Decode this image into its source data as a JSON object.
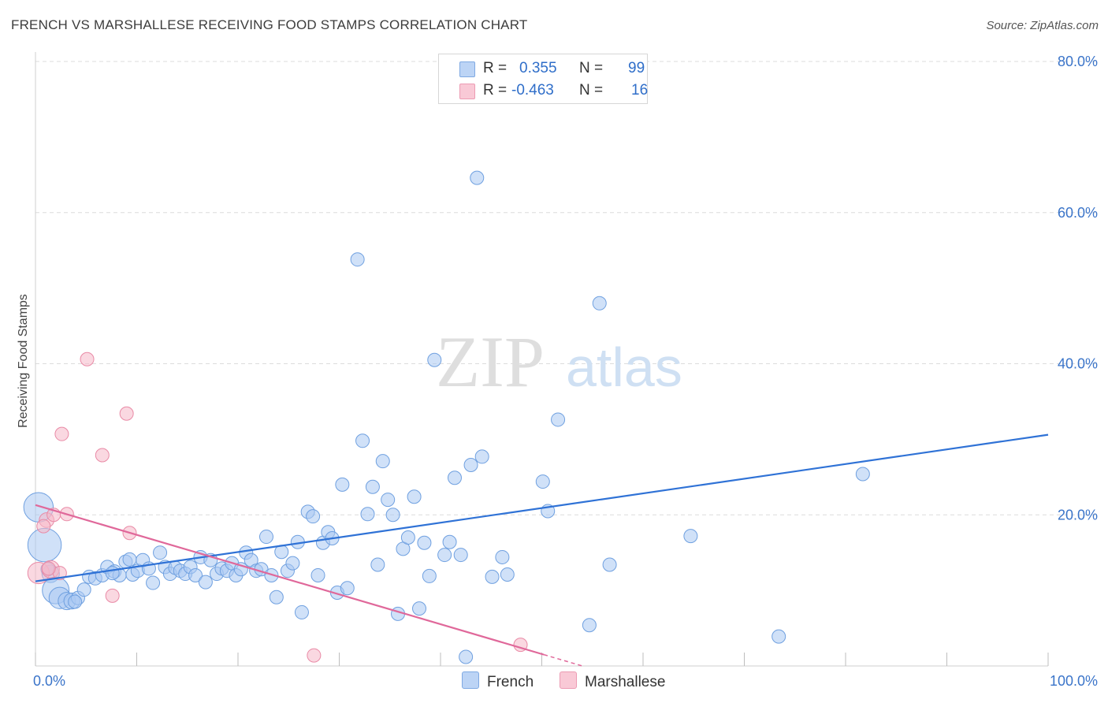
{
  "header": {
    "title": "FRENCH VS MARSHALLESE RECEIVING FOOD STAMPS CORRELATION CHART",
    "source": "Source: ZipAtlas.com"
  },
  "legend": {
    "rows": [
      {
        "r_label": "R =",
        "r_value": "0.355",
        "n_label": "N =",
        "n_value": "99",
        "color": "#a9c8f2"
      },
      {
        "r_label": "R =",
        "r_value": "-0.463",
        "n_label": "N =",
        "n_value": "16",
        "color": "#f6b8c9"
      }
    ]
  },
  "watermark": {
    "zip": "ZIP",
    "atlas": "atlas"
  },
  "chart_data": {
    "type": "scatter",
    "ylabel": "Receiving Food Stamps",
    "xlim": [
      0,
      100
    ],
    "ylim": [
      0,
      80
    ],
    "x_tick_labels": [
      "0.0%",
      "100.0%"
    ],
    "y_ticks": [
      20,
      40,
      60,
      80
    ],
    "y_tick_labels": [
      "20.0%",
      "40.0%",
      "60.0%",
      "80.0%"
    ],
    "grid": true,
    "legend_position": "top-center",
    "series": [
      {
        "name": "French",
        "color": "#a9c8f2",
        "stroke": "#6fa0e0",
        "trend_color": "#2f72d6",
        "trend": {
          "x0": 0,
          "y0": 11.2,
          "x1": 100,
          "y1": 30.6
        },
        "points": [
          [
            0.3,
            21.0,
            2.2
          ],
          [
            0.9,
            16.0,
            2.5
          ],
          [
            1.5,
            12.2,
            1.3
          ],
          [
            2.0,
            10.0,
            2.0
          ],
          [
            2.4,
            9.0,
            1.6
          ],
          [
            3.1,
            8.6,
            1.3
          ],
          [
            3.6,
            8.6,
            1.2
          ],
          [
            4.2,
            9.0,
            1.0
          ],
          [
            4.8,
            10.1,
            1.0
          ],
          [
            5.3,
            11.8,
            1.0
          ],
          [
            5.9,
            11.6,
            1.0
          ],
          [
            6.6,
            12.0,
            1.0
          ],
          [
            7.1,
            13.1,
            1.0
          ],
          [
            7.8,
            12.5,
            1.0
          ],
          [
            8.3,
            12.0,
            1.0
          ],
          [
            8.9,
            13.8,
            1.0
          ],
          [
            9.3,
            14.1,
            1.0
          ],
          [
            9.6,
            12.1,
            1.0
          ],
          [
            10.1,
            12.6,
            1.0
          ],
          [
            10.6,
            14.0,
            1.0
          ],
          [
            11.2,
            12.9,
            1.0
          ],
          [
            11.6,
            11.0,
            1.0
          ],
          [
            12.3,
            15.0,
            1.0
          ],
          [
            12.8,
            13.1,
            1.0
          ],
          [
            13.3,
            12.2,
            1.0
          ],
          [
            13.8,
            13.0,
            1.0
          ],
          [
            14.3,
            12.6,
            1.0
          ],
          [
            14.8,
            12.2,
            1.0
          ],
          [
            15.3,
            13.1,
            1.0
          ],
          [
            15.8,
            12.0,
            1.0
          ],
          [
            16.3,
            14.4,
            1.0
          ],
          [
            16.8,
            11.1,
            1.0
          ],
          [
            17.3,
            14.0,
            1.0
          ],
          [
            17.9,
            12.2,
            1.0
          ],
          [
            18.4,
            12.9,
            1.0
          ],
          [
            18.9,
            12.6,
            1.0
          ],
          [
            19.4,
            13.6,
            1.0
          ],
          [
            19.8,
            12.0,
            1.0
          ],
          [
            20.3,
            12.8,
            1.0
          ],
          [
            20.8,
            15.0,
            1.0
          ],
          [
            21.3,
            14.0,
            1.0
          ],
          [
            21.8,
            12.6,
            1.0
          ],
          [
            22.3,
            12.8,
            1.0
          ],
          [
            22.8,
            17.1,
            1.0
          ],
          [
            23.3,
            12.0,
            1.0
          ],
          [
            23.8,
            9.1,
            1.0
          ],
          [
            24.3,
            15.1,
            1.0
          ],
          [
            24.9,
            12.6,
            1.0
          ],
          [
            25.4,
            13.6,
            1.0
          ],
          [
            25.9,
            16.4,
            1.0
          ],
          [
            26.3,
            7.1,
            1.0
          ],
          [
            26.9,
            20.4,
            1.0
          ],
          [
            27.4,
            19.8,
            1.0
          ],
          [
            27.9,
            12.0,
            1.0
          ],
          [
            28.4,
            16.3,
            1.0
          ],
          [
            28.9,
            17.7,
            1.0
          ],
          [
            29.3,
            16.9,
            1.0
          ],
          [
            29.8,
            9.7,
            1.0
          ],
          [
            30.3,
            24.0,
            1.0
          ],
          [
            30.8,
            10.3,
            1.0
          ],
          [
            31.8,
            53.8,
            1.0
          ],
          [
            32.3,
            29.8,
            1.0
          ],
          [
            32.8,
            20.1,
            1.0
          ],
          [
            33.3,
            23.7,
            1.0
          ],
          [
            33.8,
            13.4,
            1.0
          ],
          [
            34.3,
            27.1,
            1.0
          ],
          [
            34.8,
            22.0,
            1.0
          ],
          [
            35.3,
            20.0,
            1.0
          ],
          [
            35.8,
            6.9,
            1.0
          ],
          [
            36.3,
            15.5,
            1.0
          ],
          [
            36.8,
            17.0,
            1.0
          ],
          [
            37.4,
            22.4,
            1.0
          ],
          [
            37.9,
            7.6,
            1.0
          ],
          [
            38.4,
            16.3,
            1.0
          ],
          [
            38.9,
            11.9,
            1.0
          ],
          [
            39.4,
            40.5,
            1.0
          ],
          [
            40.4,
            14.7,
            1.0
          ],
          [
            40.9,
            16.4,
            1.0
          ],
          [
            41.4,
            24.9,
            1.0
          ],
          [
            42.0,
            14.7,
            1.0
          ],
          [
            42.5,
            1.2,
            1.0
          ],
          [
            43.0,
            26.6,
            1.0
          ],
          [
            43.6,
            64.6,
            1.0
          ],
          [
            44.1,
            27.7,
            1.0
          ],
          [
            45.1,
            11.8,
            1.0
          ],
          [
            46.1,
            14.4,
            1.0
          ],
          [
            46.6,
            12.1,
            1.0
          ],
          [
            50.1,
            24.4,
            1.0
          ],
          [
            50.6,
            20.5,
            1.0
          ],
          [
            51.6,
            32.6,
            1.0
          ],
          [
            54.7,
            5.4,
            1.0
          ],
          [
            55.7,
            48.0,
            1.0
          ],
          [
            56.7,
            13.4,
            1.0
          ],
          [
            64.7,
            17.2,
            1.0
          ],
          [
            73.4,
            3.9,
            1.0
          ],
          [
            81.7,
            25.4,
            1.0
          ],
          [
            1.2,
            12.8,
            1.0
          ],
          [
            3.9,
            8.5,
            1.0
          ],
          [
            7.6,
            12.3,
            1.0
          ]
        ]
      },
      {
        "name": "Marshallese",
        "color": "#f6b8c9",
        "stroke": "#e98aa6",
        "trend_color": "#e0689a",
        "trend": {
          "x0": 0,
          "y0": 21.3,
          "x1": 50.2,
          "y1": 1.5,
          "dash_to_x": 54.0
        },
        "points": [
          [
            0.3,
            12.3,
            1.6
          ],
          [
            1.1,
            19.3,
            1.1
          ],
          [
            1.5,
            12.8,
            1.3
          ],
          [
            1.8,
            20.0,
            1.0
          ],
          [
            2.4,
            12.3,
            1.0
          ],
          [
            2.6,
            30.7,
            1.0
          ],
          [
            3.1,
            20.1,
            1.0
          ],
          [
            5.1,
            40.6,
            1.0
          ],
          [
            6.6,
            27.9,
            1.0
          ],
          [
            7.6,
            9.3,
            1.0
          ],
          [
            9.0,
            33.4,
            1.0
          ],
          [
            9.3,
            17.6,
            1.0
          ],
          [
            27.5,
            1.4,
            1.0
          ],
          [
            47.9,
            2.8,
            1.0
          ],
          [
            0.8,
            18.5,
            1.0
          ],
          [
            1.3,
            12.9,
            1.0
          ]
        ]
      }
    ]
  }
}
